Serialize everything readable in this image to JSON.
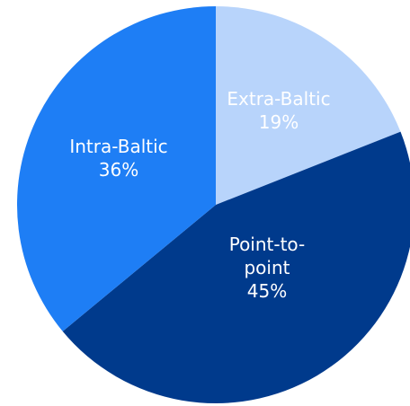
{
  "chart_data": {
    "type": "pie",
    "start_angle_deg": 0,
    "direction": "clockwise",
    "slices": [
      {
        "name": "Extra-Baltic",
        "label_lines": [
          "Extra-Baltic",
          "19%"
        ],
        "value": 19,
        "color": "#b8d4fb"
      },
      {
        "name": "Point-to-point",
        "label_lines": [
          "Point-to-",
          "point",
          "45%"
        ],
        "value": 45,
        "color": "#003a8c"
      },
      {
        "name": "Intra-Baltic",
        "label_lines": [
          "Intra-Baltic",
          "36%"
        ],
        "value": 36,
        "color": "#1e7ef5"
      }
    ],
    "title": "",
    "legend": "none"
  }
}
